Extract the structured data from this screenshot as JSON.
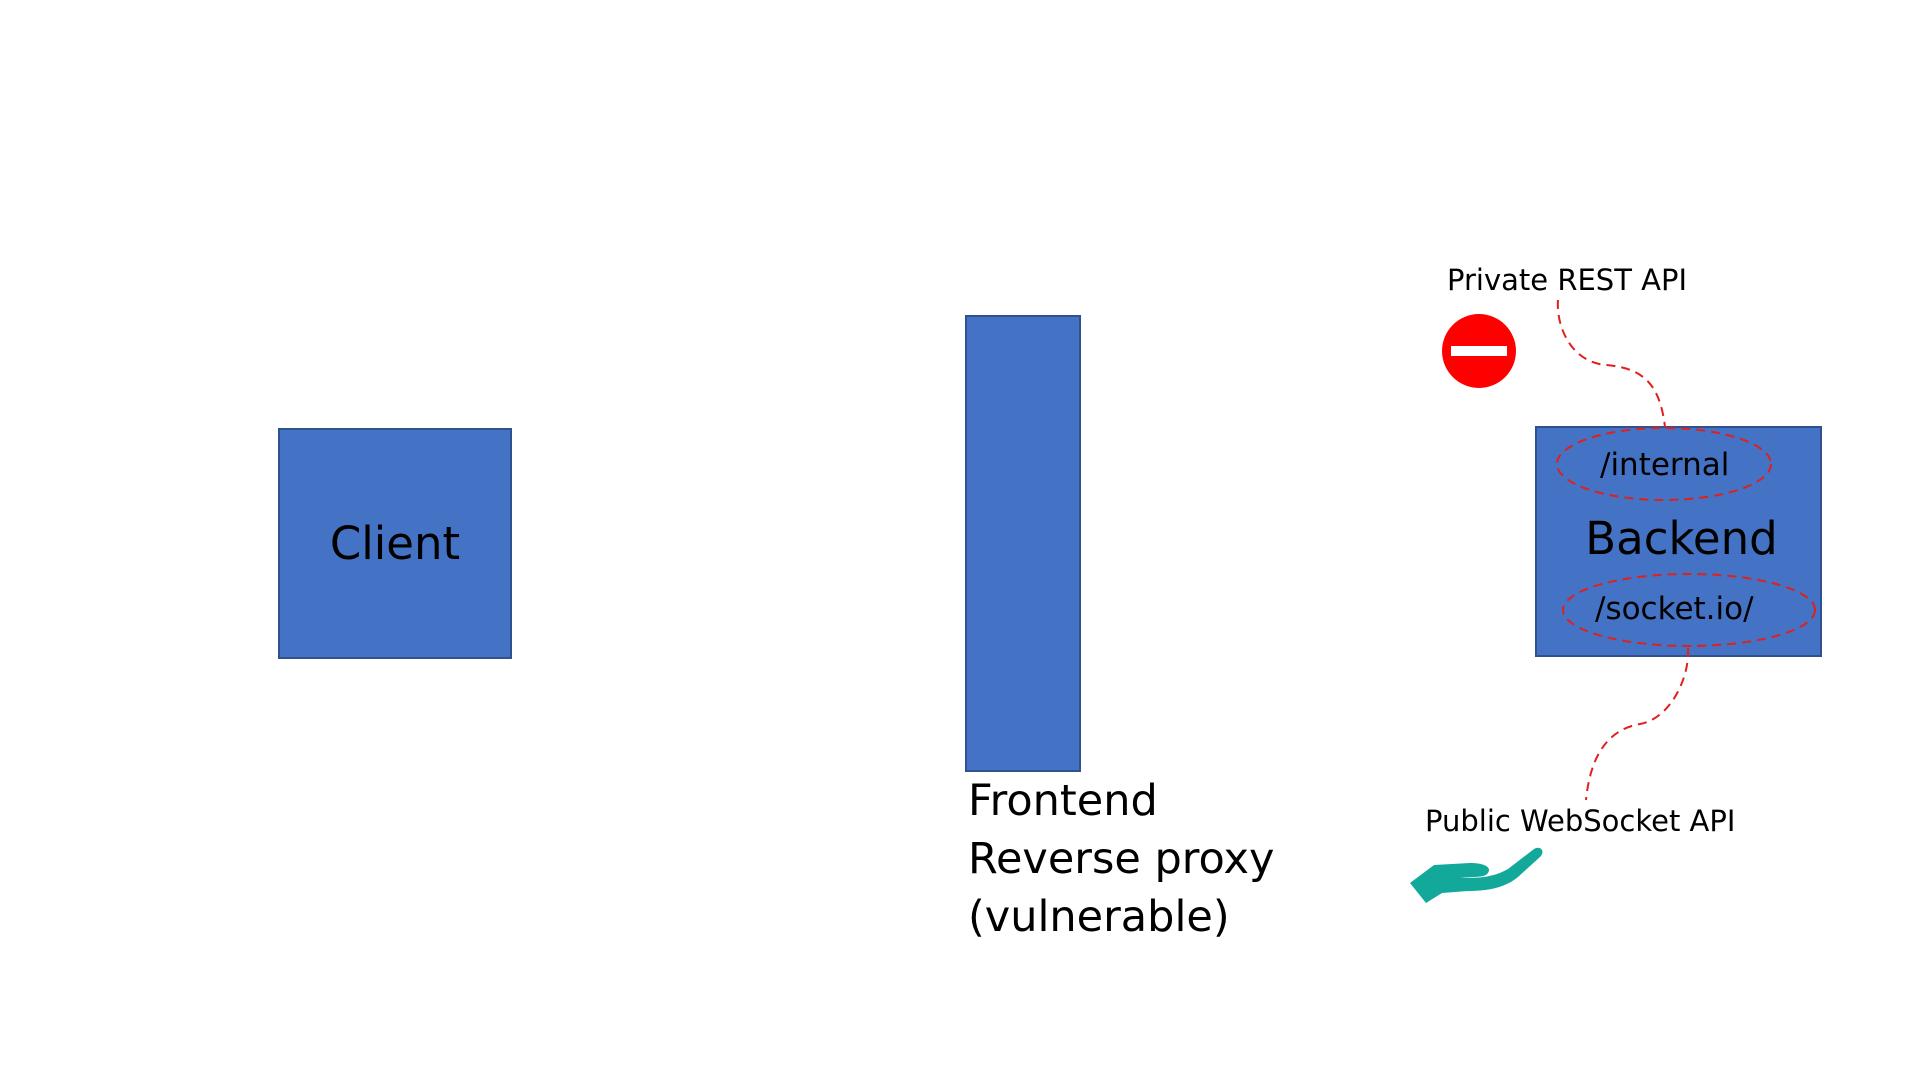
{
  "client": {
    "label": "Client"
  },
  "proxy": {
    "line1": "Frontend",
    "line2": "Reverse proxy",
    "line3": "(vulnerable)"
  },
  "backend": {
    "label": "Backend",
    "internal_endpoint": "/internal",
    "socket_endpoint": "/socket.io/"
  },
  "private_api": {
    "label": "Private REST API",
    "icon": "no-entry-icon"
  },
  "public_api": {
    "label": "Public WebSocket API",
    "icon": "hand-icon"
  },
  "colors": {
    "box_fill": "#4472c4",
    "box_border": "#2f528f",
    "dashed_line": "#e0201c",
    "no_entry": "#ff0000",
    "hand": "#12a99a"
  }
}
